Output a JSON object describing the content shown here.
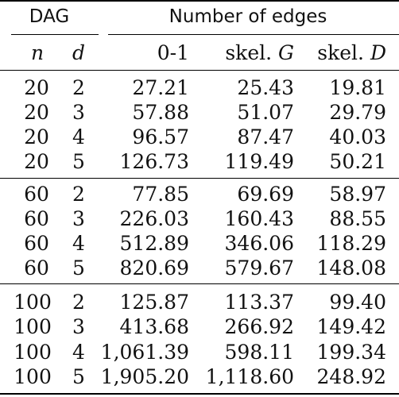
{
  "header": {
    "group1": "DAG",
    "group2": "Number of edges",
    "cols": [
      "n",
      "d",
      "0-1",
      "skel. ",
      "G",
      "skel. ",
      "D"
    ]
  },
  "blocks": [
    {
      "rows": [
        {
          "n": "20",
          "d": "2",
          "v1": "27.21",
          "v2": "25.43",
          "v3": "19.81"
        },
        {
          "n": "20",
          "d": "3",
          "v1": "57.88",
          "v2": "51.07",
          "v3": "29.79"
        },
        {
          "n": "20",
          "d": "4",
          "v1": "96.57",
          "v2": "87.47",
          "v3": "40.03"
        },
        {
          "n": "20",
          "d": "5",
          "v1": "126.73",
          "v2": "119.49",
          "v3": "50.21"
        }
      ]
    },
    {
      "rows": [
        {
          "n": "60",
          "d": "2",
          "v1": "77.85",
          "v2": "69.69",
          "v3": "58.97"
        },
        {
          "n": "60",
          "d": "3",
          "v1": "226.03",
          "v2": "160.43",
          "v3": "88.55"
        },
        {
          "n": "60",
          "d": "4",
          "v1": "512.89",
          "v2": "346.06",
          "v3": "118.29"
        },
        {
          "n": "60",
          "d": "5",
          "v1": "820.69",
          "v2": "579.67",
          "v3": "148.08"
        }
      ]
    },
    {
      "rows": [
        {
          "n": "100",
          "d": "2",
          "v1": "125.87",
          "v2": "113.37",
          "v3": "99.40"
        },
        {
          "n": "100",
          "d": "3",
          "v1": "413.68",
          "v2": "266.92",
          "v3": "149.42"
        },
        {
          "n": "100",
          "d": "4",
          "v1": "1,061.39",
          "v2": "598.11",
          "v3": "199.34"
        },
        {
          "n": "100",
          "d": "5",
          "v1": "1,905.20",
          "v2": "1,118.60",
          "v3": "248.92"
        }
      ]
    }
  ]
}
